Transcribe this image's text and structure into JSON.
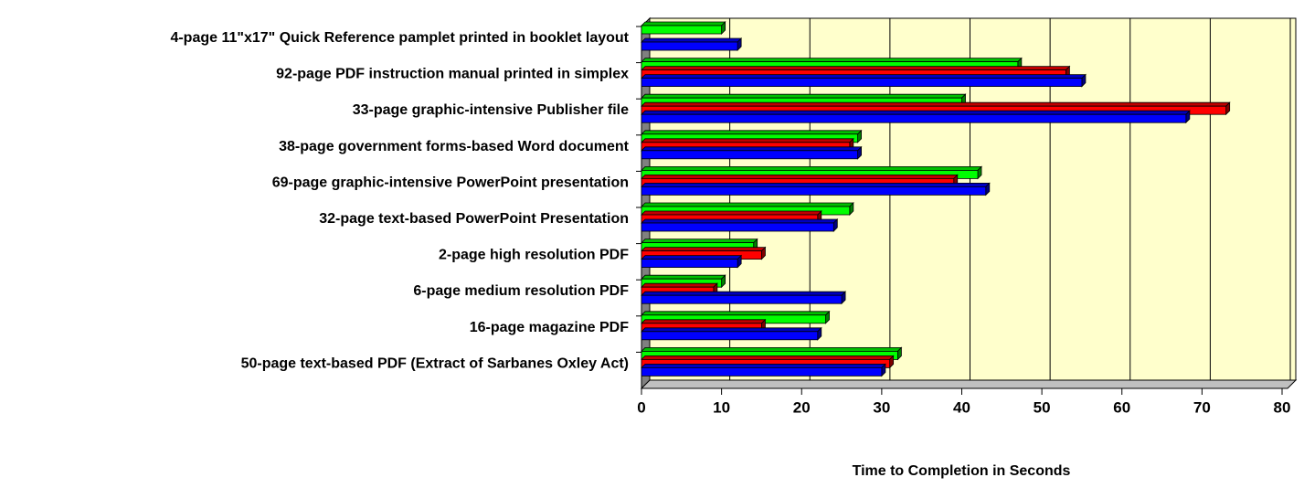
{
  "chart_data": {
    "type": "bar",
    "orientation": "horizontal",
    "x_label": "Time to Completion in Seconds",
    "categories": [
      "4-page 11\"x17\" Quick Reference pamplet printed in booklet layout",
      "92-page PDF instruction manual printed in simplex",
      "33-page graphic-intensive Publisher file",
      "38-page government forms-based Word document",
      "69-page graphic-intensive PowerPoint presentation",
      "32-page text-based PowerPoint Presentation",
      "2-page high resolution PDF",
      "6-page medium resolution PDF",
      "16-page magazine PDF",
      "50-page text-based PDF (Extract of Sarbanes Oxley Act)"
    ],
    "series": [
      {
        "color": "#00ff00",
        "values": [
          10,
          47,
          40,
          27,
          42,
          26,
          14,
          10,
          23,
          32
        ]
      },
      {
        "color": "#ff0000",
        "values": [
          null,
          53,
          73,
          26,
          39,
          22,
          15,
          9,
          15,
          31
        ]
      },
      {
        "color": "#0000ff",
        "values": [
          12,
          55,
          68,
          27,
          43,
          24,
          12,
          25,
          22,
          30
        ]
      }
    ],
    "xlim": [
      0,
      80
    ],
    "xticks": [
      0,
      10,
      20,
      30,
      40,
      50,
      60,
      70,
      80
    ],
    "grid": true
  }
}
